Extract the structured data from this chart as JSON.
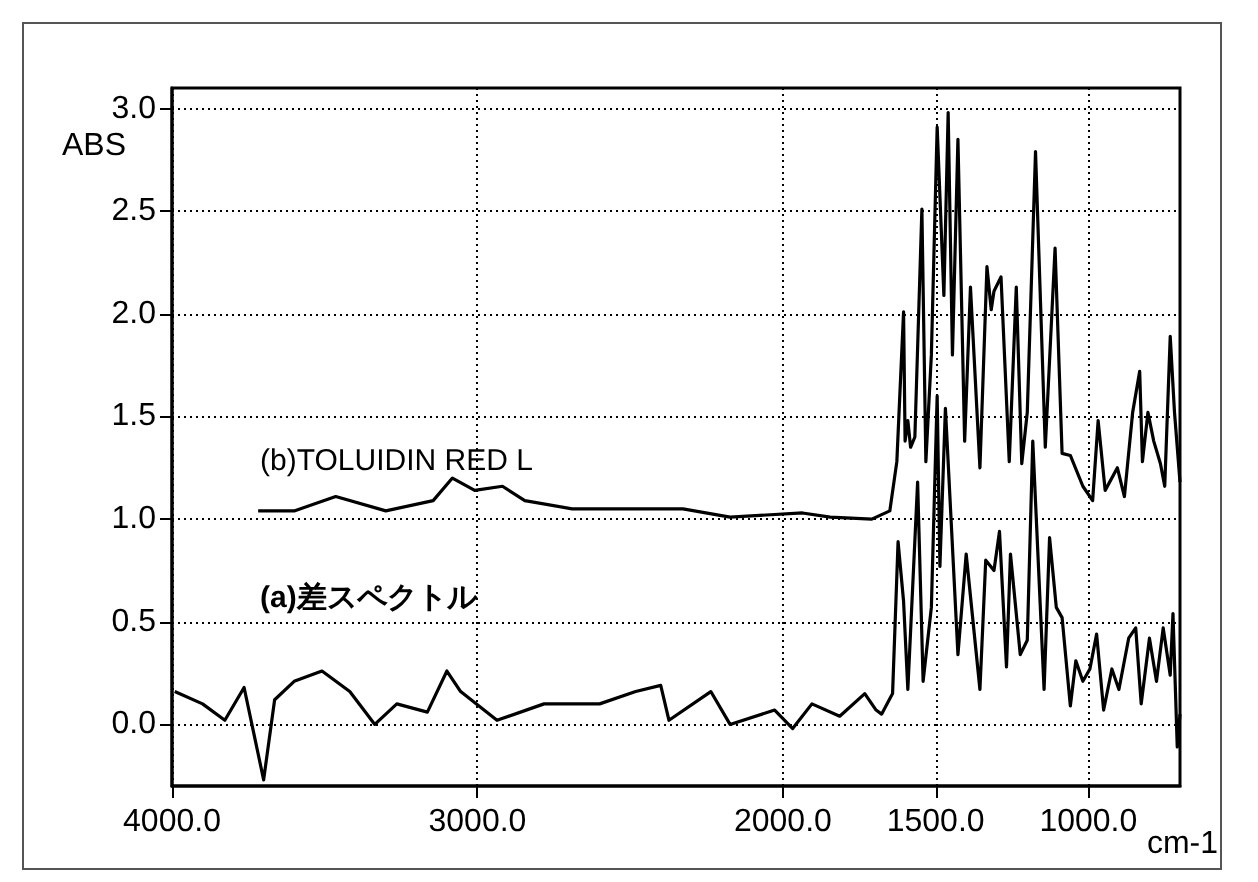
{
  "chart_data": {
    "type": "line",
    "xlabel": "cm-1",
    "ylabel": "ABS",
    "xlim": [
      4000,
      700
    ],
    "xticks": [
      {
        "value": 4000,
        "label": "4000.0"
      },
      {
        "value": 3000,
        "label": "3000.0"
      },
      {
        "value": 2000,
        "label": "2000.0"
      },
      {
        "value": 1500,
        "label": "1500.0"
      },
      {
        "value": 1000,
        "label": "1000.0"
      }
    ],
    "ylim": [
      -0.3,
      3.1
    ],
    "yticks": [
      {
        "value": 0,
        "label": "0.0"
      },
      {
        "value": 0.5,
        "label": "0.5"
      },
      {
        "value": 1,
        "label": "1.0"
      },
      {
        "value": 1.5,
        "label": "1.5"
      },
      {
        "value": 2,
        "label": "2.0"
      },
      {
        "value": 2.5,
        "label": "2.5"
      },
      {
        "value": 3,
        "label": "3.0"
      }
    ],
    "grid": true,
    "legend": false,
    "marker": "none",
    "line_style": "solid",
    "series": [
      {
        "name": "(a)差スペクトル",
        "color": "#000000",
        "x": [
          3991,
          3900,
          3827,
          3764,
          3700,
          3664,
          3600,
          3509,
          3418,
          3336,
          3264,
          3164,
          3100,
          3055,
          2936,
          2782,
          2600,
          2482,
          2400,
          2373,
          2236,
          2173,
          2027,
          1968,
          1905,
          1814,
          1732,
          1695,
          1677,
          1641,
          1623,
          1605,
          1591,
          1559,
          1541,
          1514,
          1495,
          1486,
          1468,
          1427,
          1400,
          1355,
          1336,
          1309,
          1291,
          1268,
          1255,
          1223,
          1200,
          1182,
          1145,
          1127,
          1105,
          1086,
          1059,
          1041,
          1018,
          995,
          973,
          950,
          923,
          900,
          868,
          845,
          827,
          800,
          777,
          755,
          732,
          723,
          709,
          700
        ],
        "values": [
          0.16,
          0.1,
          0.02,
          0.18,
          -0.27,
          0.12,
          0.21,
          0.26,
          0.16,
          0.0,
          0.1,
          0.06,
          0.26,
          0.16,
          0.02,
          0.1,
          0.1,
          0.16,
          0.19,
          0.02,
          0.16,
          0.0,
          0.07,
          -0.02,
          0.1,
          0.04,
          0.15,
          0.07,
          0.05,
          0.15,
          0.89,
          0.6,
          0.17,
          1.18,
          0.21,
          0.57,
          1.6,
          0.77,
          1.54,
          0.34,
          0.83,
          0.17,
          0.8,
          0.75,
          0.94,
          0.28,
          0.83,
          0.34,
          0.41,
          1.38,
          0.17,
          0.91,
          0.57,
          0.52,
          0.09,
          0.31,
          0.21,
          0.27,
          0.44,
          0.07,
          0.27,
          0.17,
          0.42,
          0.47,
          0.1,
          0.42,
          0.21,
          0.47,
          0.24,
          0.54,
          -0.11,
          0.05
        ]
      },
      {
        "name": "(b)TOLUIDIN RED L",
        "color": "#000000",
        "x": [
          3718,
          3600,
          3464,
          3300,
          3145,
          3082,
          3009,
          2918,
          2845,
          2690,
          2327,
          2173,
          1936,
          1845,
          1709,
          1650,
          1627,
          1605,
          1600,
          1591,
          1582,
          1568,
          1545,
          1532,
          1514,
          1495,
          1473,
          1459,
          1445,
          1427,
          1405,
          1386,
          1355,
          1332,
          1318,
          1309,
          1286,
          1259,
          1236,
          1218,
          1200,
          1173,
          1141,
          1109,
          1086,
          1059,
          1018,
          986,
          968,
          945,
          905,
          882,
          855,
          832,
          823,
          805,
          786,
          764,
          750,
          732,
          718,
          700
        ],
        "values": [
          1.04,
          1.04,
          1.11,
          1.04,
          1.09,
          1.2,
          1.14,
          1.16,
          1.09,
          1.05,
          1.05,
          1.01,
          1.03,
          1.01,
          1.0,
          1.04,
          1.28,
          2.01,
          1.38,
          1.48,
          1.35,
          1.4,
          2.51,
          1.28,
          1.8,
          2.91,
          2.09,
          2.98,
          1.8,
          2.85,
          1.38,
          2.13,
          1.25,
          2.23,
          2.02,
          2.11,
          2.18,
          1.28,
          2.13,
          1.27,
          1.52,
          2.79,
          1.35,
          2.32,
          1.32,
          1.31,
          1.16,
          1.09,
          1.48,
          1.14,
          1.25,
          1.11,
          1.52,
          1.72,
          1.28,
          1.52,
          1.38,
          1.27,
          1.16,
          1.89,
          1.52,
          1.18
        ]
      }
    ]
  }
}
